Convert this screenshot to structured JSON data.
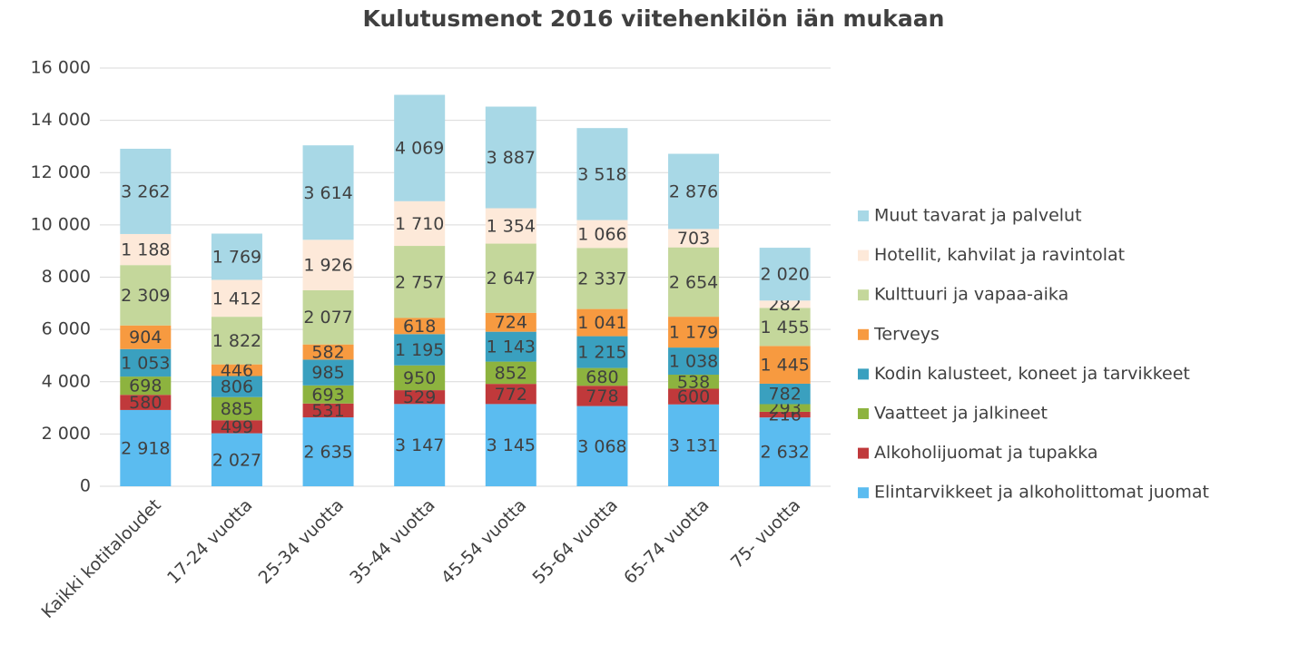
{
  "chart_data": {
    "type": "stacked_bar",
    "title": "Kulutusmenot 2016 viitehenkilön iän mukaan",
    "categories": [
      "Kaikki kotitaloudet",
      "17-24 vuotta",
      "25-34 vuotta",
      "35-44 vuotta",
      "45-54 vuotta",
      "55-64 vuotta",
      "65-74 vuotta",
      "75- vuotta"
    ],
    "series": [
      {
        "name": "Elintarvikkeet ja alkoholittomat juomat",
        "color": "#5bbcf0",
        "values": [
          2918,
          2027,
          2635,
          3147,
          3145,
          3068,
          3131,
          2632
        ],
        "value_labels": [
          "2 918",
          "2 027",
          "2 635",
          "3 147",
          "3 145",
          "3 068",
          "3 131",
          "2 632"
        ]
      },
      {
        "name": "Alkoholijuomat ja tupakka",
        "color": "#c0393b",
        "values": [
          580,
          499,
          531,
          529,
          772,
          778,
          600,
          216
        ]
      },
      {
        "name": "Vaatteet ja jalkineet",
        "color": "#8db33f",
        "values": [
          698,
          885,
          693,
          950,
          852,
          680,
          538,
          293
        ]
      },
      {
        "name": "Kodin kalusteet, koneet ja tarvikkeet",
        "color": "#3aa0bf",
        "values": [
          1053,
          806,
          985,
          1195,
          1143,
          1215,
          1038,
          782
        ],
        "value_labels": [
          "1 053",
          "806",
          "985",
          "1 195",
          "1 143",
          "1 215",
          "1 038",
          "782"
        ]
      },
      {
        "name": "Terveys",
        "color": "#f79a40",
        "values": [
          904,
          446,
          582,
          618,
          724,
          1041,
          1179,
          1445
        ],
        "value_labels": [
          "904",
          "446",
          "582",
          "618",
          "724",
          "1 041",
          "1 179",
          "1 445"
        ]
      },
      {
        "name": "Kulttuuri ja vapaa-aika",
        "color": "#c4d79b",
        "values": [
          2309,
          1822,
          2077,
          2757,
          2647,
          2337,
          2654,
          1455
        ],
        "value_labels": [
          "2 309",
          "1 822",
          "2 077",
          "2 757",
          "2 647",
          "2 337",
          "2 654",
          "1 455"
        ]
      },
      {
        "name": "Hotellit, kahvilat ja ravintolat",
        "color": "#fde9d9",
        "values": [
          1188,
          1412,
          1926,
          1710,
          1354,
          1066,
          703,
          282
        ],
        "value_labels": [
          "1 188",
          "1 412",
          "1 926",
          "1 710",
          "1 354",
          "1 066",
          "703",
          "282"
        ]
      },
      {
        "name": "Muut tavarat ja palvelut",
        "color": "#a8d8e6",
        "values": [
          3262,
          1769,
          3614,
          4069,
          3887,
          3518,
          2876,
          2020
        ],
        "value_labels": [
          "3 262",
          "1 769",
          "3 614",
          "4 069",
          "3 887",
          "3 518",
          "2 876",
          "2 020"
        ]
      }
    ],
    "ylim": [
      0,
      16000
    ],
    "yticks": [
      0,
      {
        "value": 2000,
        "label": "2 000"
      },
      {
        "value": 4000,
        "label": "4 000"
      },
      {
        "value": 6000,
        "label": "6 000"
      },
      {
        "value": 8000,
        "label": "8 000"
      },
      {
        "value": 10000,
        "label": "10 000"
      },
      {
        "value": 12000,
        "label": "12 000"
      },
      {
        "value": 14000,
        "label": "14 000"
      },
      {
        "value": 16000,
        "label": "16 000"
      }
    ],
    "grid": true,
    "legend": "right"
  }
}
